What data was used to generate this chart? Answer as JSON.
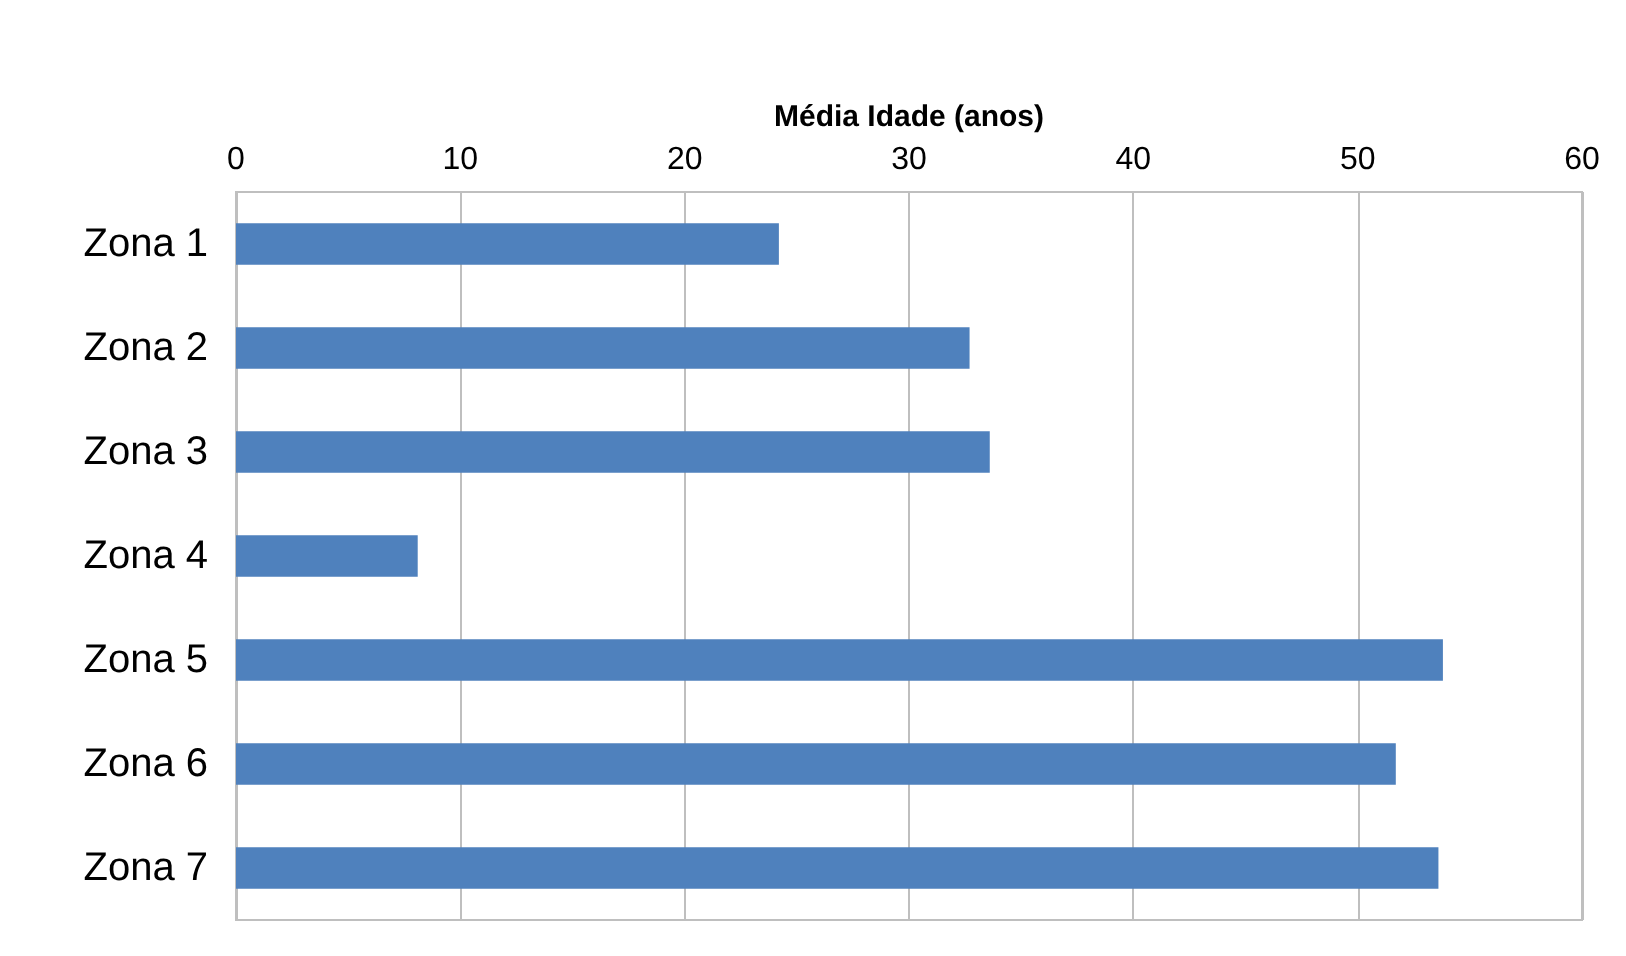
{
  "chart_data": {
    "type": "bar",
    "orientation": "horizontal",
    "xlabel": "Média Idade (anos)",
    "categories": [
      "Zona 1",
      "Zona 2",
      "Zona 3",
      "Zona 4",
      "Zona 5",
      "Zona 6",
      "Zona 7"
    ],
    "values": [
      24.2,
      32.7,
      33.6,
      8.1,
      53.8,
      51.7,
      53.6
    ],
    "color": "#4f81bd",
    "xlim": [
      0,
      60
    ],
    "xticks": [
      0,
      10,
      20,
      30,
      40,
      50,
      60
    ],
    "grid": "x"
  }
}
